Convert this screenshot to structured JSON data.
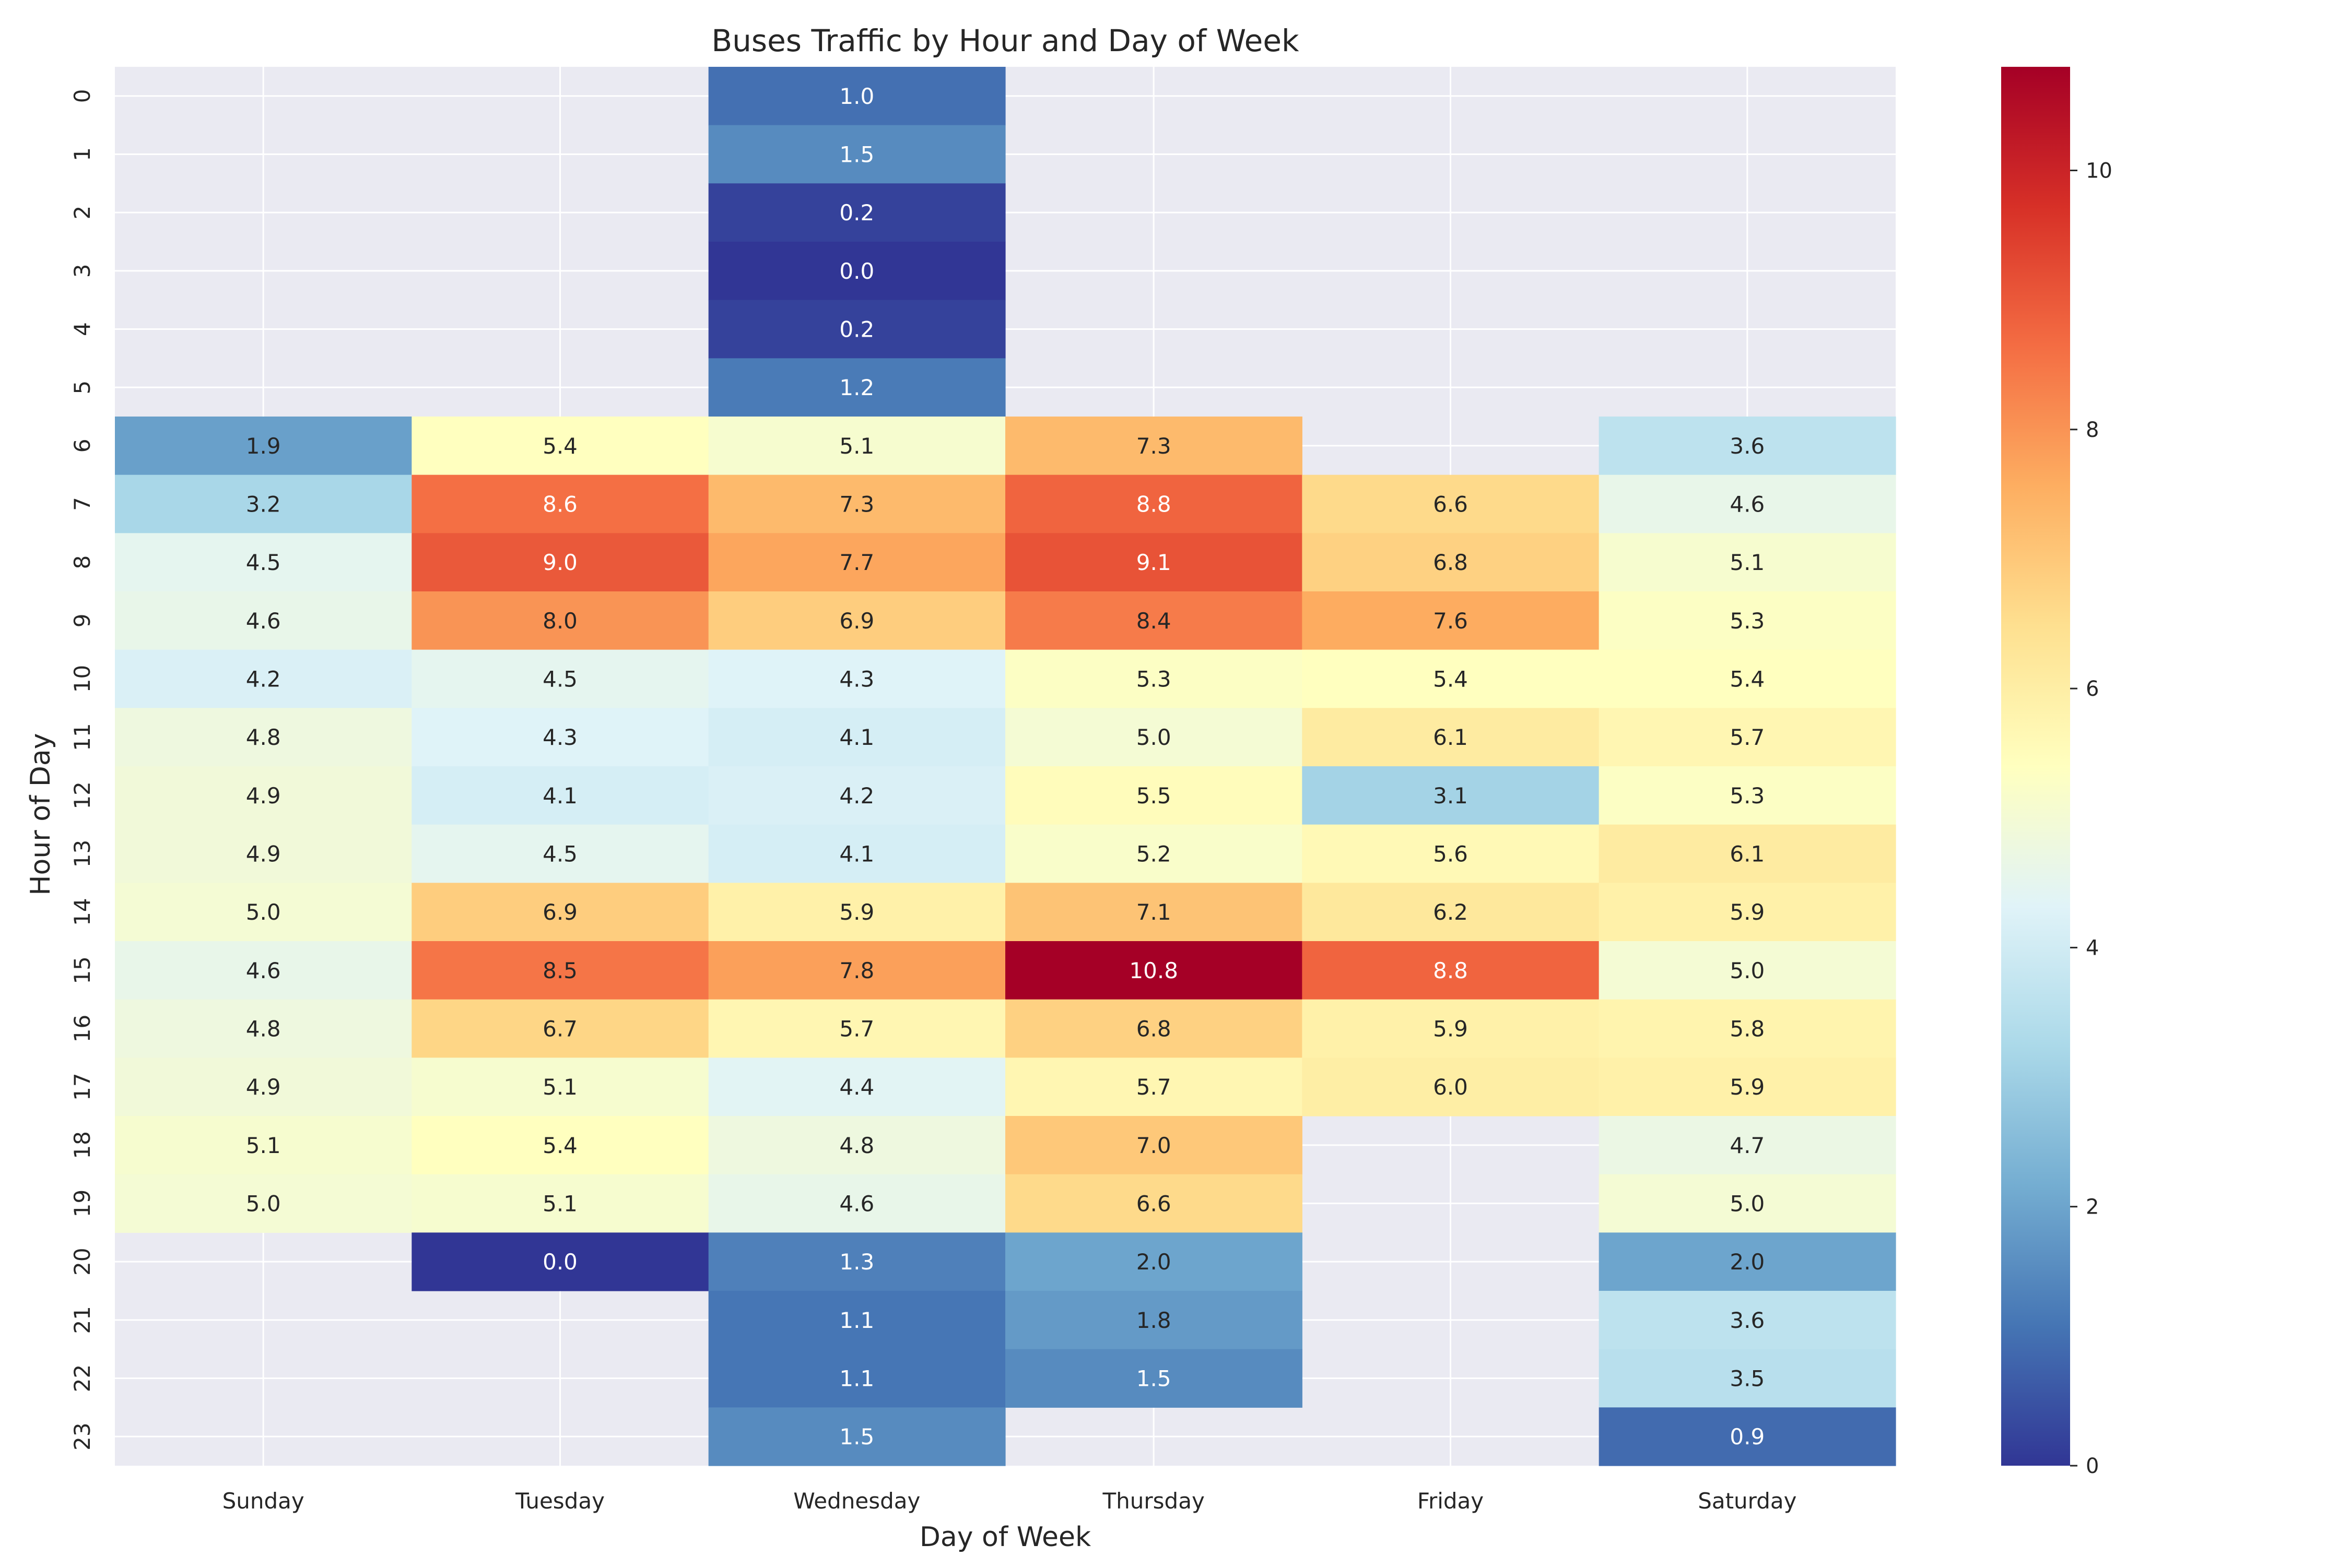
{
  "chart_data": {
    "type": "heatmap",
    "title": "Buses Traffic by Hour and Day of Week",
    "xlabel": "Day of Week",
    "ylabel": "Hour of Day",
    "x_categories": [
      "Sunday",
      "Tuesday",
      "Wednesday",
      "Thursday",
      "Friday",
      "Saturday"
    ],
    "y_categories": [
      "0",
      "1",
      "2",
      "3",
      "4",
      "5",
      "6",
      "7",
      "8",
      "9",
      "10",
      "11",
      "12",
      "13",
      "14",
      "15",
      "16",
      "17",
      "18",
      "19",
      "20",
      "21",
      "22",
      "23"
    ],
    "values": [
      [
        null,
        null,
        1.0,
        null,
        null,
        null
      ],
      [
        null,
        null,
        1.5,
        null,
        null,
        null
      ],
      [
        null,
        null,
        0.2,
        null,
        null,
        null
      ],
      [
        null,
        null,
        0.0,
        null,
        null,
        null
      ],
      [
        null,
        null,
        0.2,
        null,
        null,
        null
      ],
      [
        null,
        null,
        1.2,
        null,
        null,
        null
      ],
      [
        1.9,
        5.4,
        5.1,
        7.3,
        null,
        3.6
      ],
      [
        3.2,
        8.6,
        7.3,
        8.8,
        6.6,
        4.6
      ],
      [
        4.5,
        9.0,
        7.7,
        9.1,
        6.8,
        5.1
      ],
      [
        4.6,
        8.0,
        6.9,
        8.4,
        7.6,
        5.3
      ],
      [
        4.2,
        4.5,
        4.3,
        5.3,
        5.4,
        5.4
      ],
      [
        4.8,
        4.3,
        4.1,
        5.0,
        6.1,
        5.7
      ],
      [
        4.9,
        4.1,
        4.2,
        5.5,
        3.1,
        5.3
      ],
      [
        4.9,
        4.5,
        4.1,
        5.2,
        5.6,
        6.1
      ],
      [
        5.0,
        6.9,
        5.9,
        7.1,
        6.2,
        5.9
      ],
      [
        4.6,
        8.5,
        7.8,
        10.8,
        8.8,
        5.0
      ],
      [
        4.8,
        6.7,
        5.7,
        6.8,
        5.9,
        5.8
      ],
      [
        4.9,
        5.1,
        4.4,
        5.7,
        6.0,
        5.9
      ],
      [
        5.1,
        5.4,
        4.8,
        7.0,
        null,
        4.7
      ],
      [
        5.0,
        5.1,
        4.6,
        6.6,
        null,
        5.0
      ],
      [
        null,
        0.0,
        1.3,
        2.0,
        null,
        2.0
      ],
      [
        null,
        null,
        1.1,
        1.8,
        null,
        3.6
      ],
      [
        null,
        null,
        1.1,
        1.5,
        null,
        3.5
      ],
      [
        null,
        null,
        1.5,
        null,
        null,
        0.9
      ]
    ],
    "value_range": [
      0,
      10.8
    ],
    "colormap": "RdYlBu_r",
    "colorbar_ticks": [
      0,
      2,
      4,
      6,
      8,
      10
    ],
    "missing_color": "#eaeaf2",
    "grid": true,
    "grid_color": "#ffffff"
  }
}
